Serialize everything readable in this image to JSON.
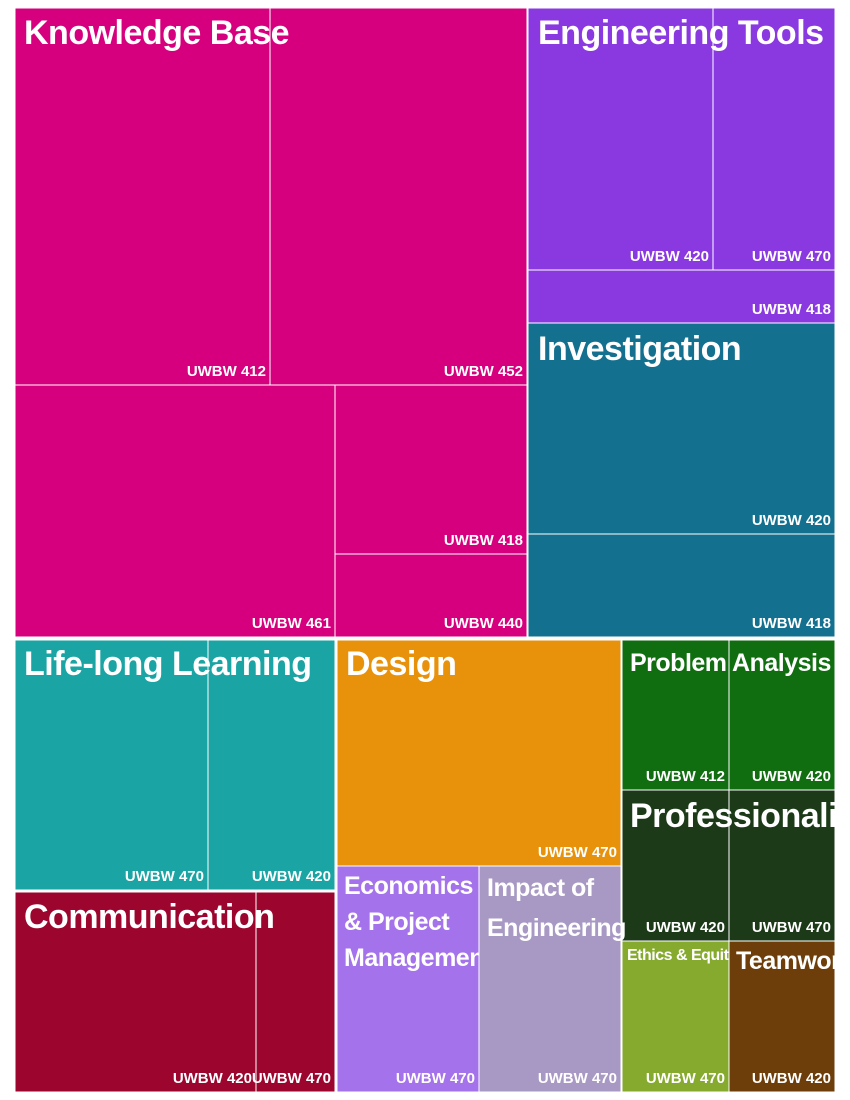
{
  "chart_data": {
    "type": "treemap",
    "groups": [
      {
        "name": "Knowledge Base",
        "color": "#d6007f",
        "children": [
          {
            "name": "UWBW 412"
          },
          {
            "name": "UWBW 452"
          },
          {
            "name": "UWBW 461"
          },
          {
            "name": "UWBW 418"
          },
          {
            "name": "UWBW 440"
          }
        ]
      },
      {
        "name": "Engineering Tools",
        "color": "#8a38e0",
        "children": [
          {
            "name": "UWBW 420"
          },
          {
            "name": "UWBW 470"
          },
          {
            "name": "UWBW 418"
          }
        ]
      },
      {
        "name": "Investigation",
        "color": "#13708e",
        "children": [
          {
            "name": "UWBW 420"
          },
          {
            "name": "UWBW 418"
          }
        ]
      },
      {
        "name": "Life-long Learning",
        "color": "#1ba4a4",
        "children": [
          {
            "name": "UWBW 470"
          },
          {
            "name": "UWBW 420"
          }
        ]
      },
      {
        "name": "Design",
        "color": "#e8920c",
        "children": [
          {
            "name": "UWBW 470"
          }
        ]
      },
      {
        "name": "Problem Analysis",
        "color": "#106e10",
        "children": [
          {
            "name": "UWBW 412"
          },
          {
            "name": "UWBW 420"
          }
        ]
      },
      {
        "name": "Professionalism",
        "color": "#1c3a18",
        "children": [
          {
            "name": "UWBW 420"
          },
          {
            "name": "UWBW 470"
          }
        ]
      },
      {
        "name": "Communication",
        "color": "#9c062e",
        "children": [
          {
            "name": "UWBW 420"
          },
          {
            "name": "UWBW 470"
          }
        ]
      },
      {
        "name": "Economics & Project Management",
        "color": "#a472ea",
        "children": [
          {
            "name": "UWBW 470"
          }
        ]
      },
      {
        "name": "Impact of Engineering",
        "color": "#a899c4",
        "children": [
          {
            "name": "UWBW 470"
          }
        ]
      },
      {
        "name": "Ethics & Equity",
        "color": "#86aa2e",
        "children": [
          {
            "name": "UWBW 470"
          }
        ]
      },
      {
        "name": "Teamwork",
        "color": "#6e3e0a",
        "children": [
          {
            "name": "UWBW 420"
          }
        ]
      }
    ]
  }
}
